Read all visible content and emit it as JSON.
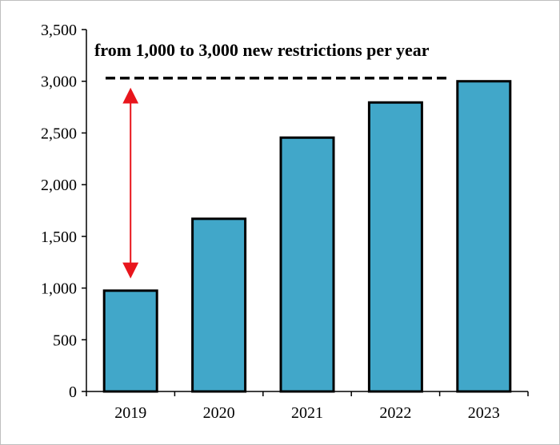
{
  "chart_data": {
    "type": "bar",
    "title": "",
    "xlabel": "",
    "ylabel": "",
    "categories": [
      "2019",
      "2020",
      "2021",
      "2022",
      "2023"
    ],
    "values": [
      975,
      1670,
      2455,
      2795,
      3000
    ],
    "ylim": [
      0,
      3500
    ],
    "y_ticks": [
      0,
      500,
      1000,
      1500,
      2000,
      2500,
      3000,
      3500
    ],
    "y_tick_labels": [
      "0",
      "500",
      "1,000",
      "1,500",
      "2,000",
      "2,500",
      "3,000",
      "3,500"
    ],
    "grid": false,
    "legend": "none",
    "bar_color": "#41A7C9",
    "bar_edge_color": "#000000",
    "annotations": {
      "text": "from 1,000 to 3,000 new restrictions per year",
      "reference_line_value": 3000,
      "arrow_from_value": 3000,
      "arrow_to_value": 1000,
      "arrow_color": "#E8151C",
      "line_color": "#000000",
      "line_style": "dashed"
    }
  }
}
